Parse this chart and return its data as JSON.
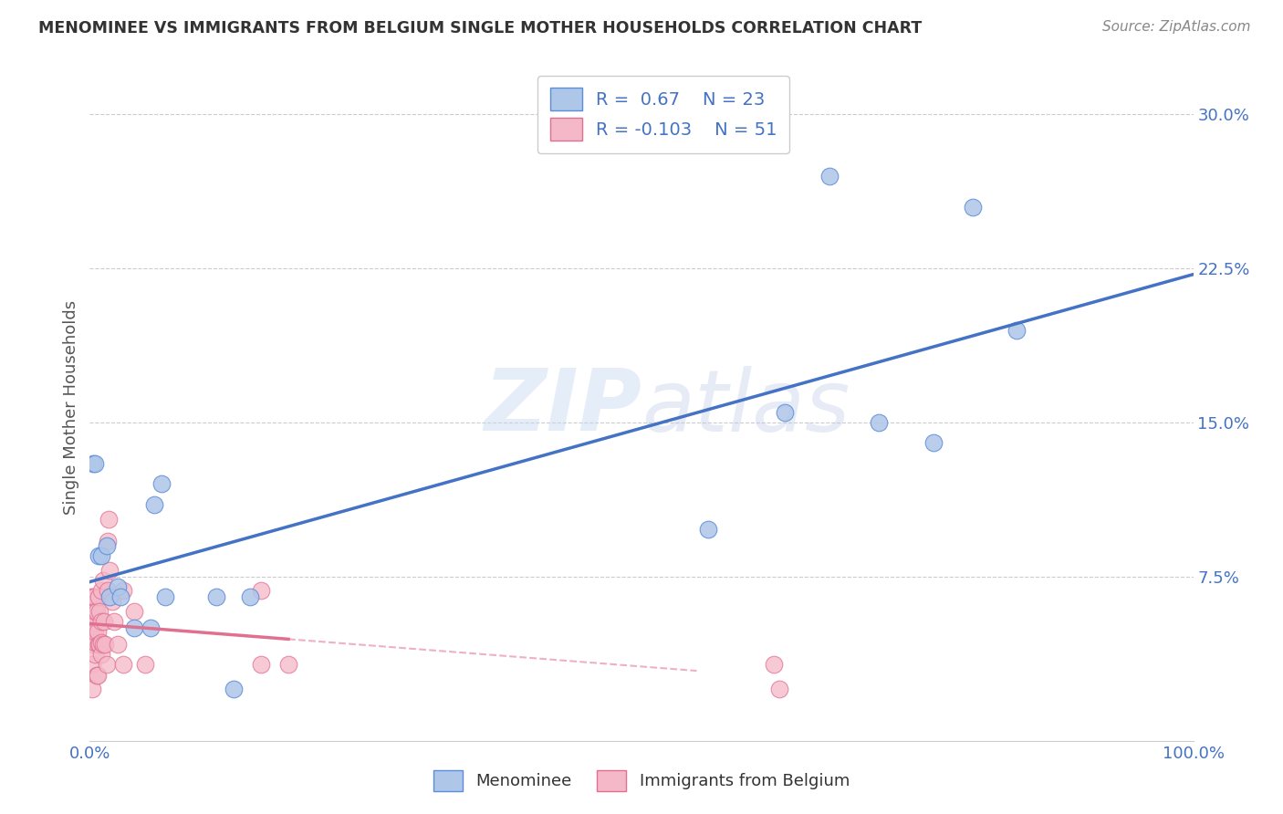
{
  "title": "MENOMINEE VS IMMIGRANTS FROM BELGIUM SINGLE MOTHER HOUSEHOLDS CORRELATION CHART",
  "source": "Source: ZipAtlas.com",
  "ylabel": "Single Mother Households",
  "xlim": [
    0.0,
    1.0
  ],
  "ylim": [
    -0.005,
    0.32
  ],
  "yticks": [
    0.075,
    0.15,
    0.225,
    0.3
  ],
  "ytick_labels": [
    "7.5%",
    "15.0%",
    "22.5%",
    "30.0%"
  ],
  "xticks": [
    0.0,
    0.25,
    0.5,
    0.75,
    1.0
  ],
  "menominee_R": 0.67,
  "menominee_N": 23,
  "belgium_R": -0.103,
  "belgium_N": 51,
  "menominee_color": "#aec6e8",
  "belgium_color": "#f4b8c8",
  "menominee_edge_color": "#5b8dd9",
  "belgium_edge_color": "#e07090",
  "menominee_line_color": "#4472c4",
  "belgium_line_color": "#e07090",
  "tick_color": "#4472c4",
  "background_color": "#ffffff",
  "grid_color": "#cccccc",
  "watermark": "ZIPatlas",
  "menominee_x": [
    0.003,
    0.005,
    0.008,
    0.01,
    0.015,
    0.018,
    0.025,
    0.028,
    0.04,
    0.055,
    0.058,
    0.065,
    0.068,
    0.115,
    0.13,
    0.145,
    0.56,
    0.63,
    0.67,
    0.715,
    0.765,
    0.8,
    0.84
  ],
  "menominee_y": [
    0.13,
    0.13,
    0.085,
    0.085,
    0.09,
    0.065,
    0.07,
    0.065,
    0.05,
    0.05,
    0.11,
    0.12,
    0.065,
    0.065,
    0.02,
    0.065,
    0.098,
    0.155,
    0.27,
    0.15,
    0.14,
    0.255,
    0.195
  ],
  "belgium_x": [
    0.001,
    0.001,
    0.001,
    0.001,
    0.001,
    0.002,
    0.002,
    0.002,
    0.003,
    0.003,
    0.003,
    0.003,
    0.004,
    0.004,
    0.005,
    0.005,
    0.005,
    0.005,
    0.006,
    0.006,
    0.007,
    0.007,
    0.008,
    0.008,
    0.009,
    0.009,
    0.01,
    0.01,
    0.01,
    0.01,
    0.012,
    0.012,
    0.013,
    0.014,
    0.015,
    0.016,
    0.016,
    0.017,
    0.018,
    0.02,
    0.022,
    0.025,
    0.03,
    0.03,
    0.04,
    0.05,
    0.155,
    0.155,
    0.18,
    0.62,
    0.625
  ],
  "belgium_y": [
    0.045,
    0.045,
    0.055,
    0.055,
    0.065,
    0.02,
    0.032,
    0.045,
    0.042,
    0.048,
    0.055,
    0.065,
    0.052,
    0.065,
    0.037,
    0.043,
    0.048,
    0.058,
    0.027,
    0.058,
    0.027,
    0.048,
    0.042,
    0.065,
    0.042,
    0.058,
    0.037,
    0.043,
    0.053,
    0.068,
    0.042,
    0.073,
    0.053,
    0.042,
    0.032,
    0.068,
    0.092,
    0.103,
    0.078,
    0.063,
    0.053,
    0.042,
    0.032,
    0.068,
    0.058,
    0.032,
    0.068,
    0.032,
    0.032,
    0.032,
    0.02
  ]
}
